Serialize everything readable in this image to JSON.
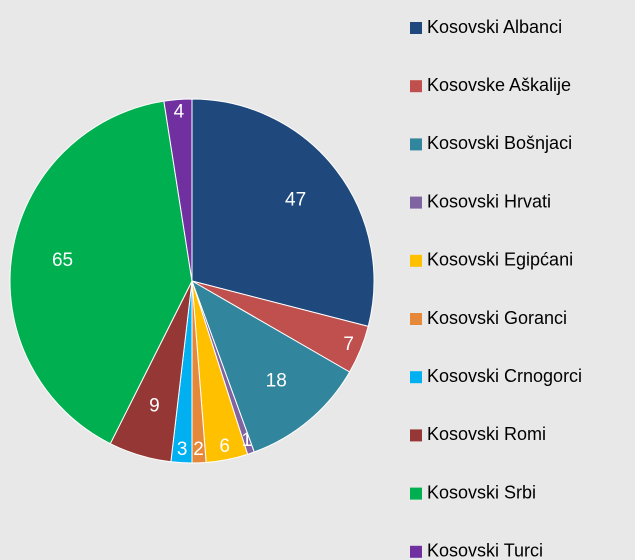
{
  "chart_data": {
    "type": "pie",
    "categories": [
      "Kosovski Albanci",
      "Kosovske Aškalije",
      "Kosovski Bošnjaci",
      "Kosovski Hrvati",
      "Kosovski Egipćani",
      "Kosovski Goranci",
      "Kosovski Crnogorci",
      "Kosovski Romi",
      "Kosovski Srbi",
      "Kosovski Turci"
    ],
    "values": [
      47,
      7,
      18,
      1,
      6,
      2,
      3,
      9,
      65,
      4
    ],
    "colors": [
      "#1f497d",
      "#c0504d",
      "#31859c",
      "#8064a2",
      "#ffc000",
      "#e6883a",
      "#00b0f0",
      "#953735",
      "#00b050",
      "#7030a0"
    ],
    "legend": "right"
  }
}
